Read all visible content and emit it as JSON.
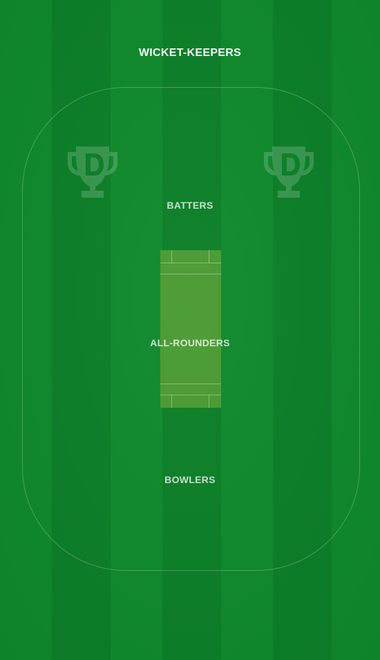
{
  "field": {
    "sections": {
      "wicket_keepers": "WICKET-KEEPERS",
      "batters": "BATTERS",
      "all_rounders": "ALL-ROUNDERS",
      "bowlers": "BOWLERS"
    },
    "watermark_icon": "trophy-d-logo-icon",
    "colors": {
      "grass_light": "#0f8a2c",
      "grass_dark": "#0b7f27",
      "pitch": "#4a9a32"
    }
  }
}
